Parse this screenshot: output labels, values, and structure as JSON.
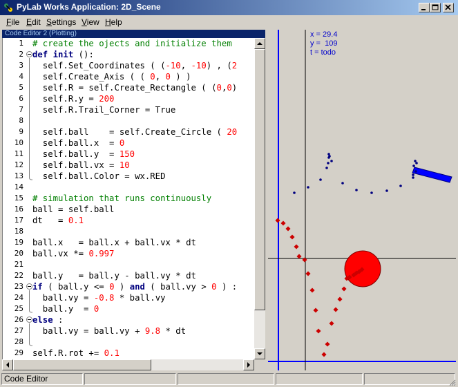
{
  "window": {
    "title": "PyLab Works Application: 2D_Scene",
    "title_color": "#0a246a"
  },
  "menu": [
    "File",
    "Edit",
    "Settings",
    "View",
    "Help"
  ],
  "editor": {
    "caption": "Code Editor 2 (Plotting)",
    "lines": [
      {
        "n": "1",
        "fold": "",
        "html": "<span class=\"cm\"># create the ojects and initialize them</span>"
      },
      {
        "n": "2",
        "fold": "minus",
        "html": "<span class=\"kw\">def</span> <span class=\"kw\">init</span> ():"
      },
      {
        "n": "3",
        "fold": "",
        "html": "  self.Set_Coordinates ( (<span class=\"num\">-10</span>, <span class=\"num\">-10</span>) , (<span class=\"num\">2</span>"
      },
      {
        "n": "4",
        "fold": "",
        "html": "  self.Create_Axis ( ( <span class=\"num\">0</span>, <span class=\"num\">0</span> ) )"
      },
      {
        "n": "5",
        "fold": "",
        "html": "  self.R = self.Create_Rectangle ( (<span class=\"num\">0</span>,<span class=\"num\">0</span>)"
      },
      {
        "n": "6",
        "fold": "",
        "html": "  self.R.y = <span class=\"num\">200</span>"
      },
      {
        "n": "7",
        "fold": "",
        "html": "  self.R.Trail_Corner = True"
      },
      {
        "n": "8",
        "fold": "",
        "html": ""
      },
      {
        "n": "9",
        "fold": "",
        "html": "  self.ball    = self.Create_Circle ( <span class=\"num\">20</span>"
      },
      {
        "n": "10",
        "fold": "",
        "html": "  self.ball.x  = <span class=\"num\">0</span>"
      },
      {
        "n": "11",
        "fold": "",
        "html": "  self.ball.y  = <span class=\"num\">150</span>"
      },
      {
        "n": "12",
        "fold": "",
        "html": "  self.ball.vx = <span class=\"num\">10</span>"
      },
      {
        "n": "13",
        "fold": "end",
        "html": "  self.ball.Color = wx.RED"
      },
      {
        "n": "14",
        "fold": "",
        "html": ""
      },
      {
        "n": "15",
        "fold": "",
        "html": "<span class=\"cm\"># simulation that runs continuously</span>"
      },
      {
        "n": "16",
        "fold": "",
        "html": "ball = self.ball"
      },
      {
        "n": "17",
        "fold": "",
        "html": "dt   = <span class=\"num\">0.1</span>"
      },
      {
        "n": "18",
        "fold": "",
        "html": ""
      },
      {
        "n": "19",
        "fold": "",
        "html": "ball.x   = ball.x + ball.vx * dt"
      },
      {
        "n": "20",
        "fold": "",
        "html": "ball.vx *= <span class=\"num\">0.997</span>"
      },
      {
        "n": "21",
        "fold": "",
        "html": ""
      },
      {
        "n": "22",
        "fold": "",
        "html": "ball.y   = ball.y - ball.vy * dt"
      },
      {
        "n": "23",
        "fold": "minus",
        "html": "<span class=\"kw\">if</span> ( ball.y &lt;= <span class=\"num\">0</span> ) <span class=\"kw\">and</span> ( ball.vy &gt; <span class=\"num\">0</span> ) :"
      },
      {
        "n": "24",
        "fold": "",
        "html": "  ball.vy = <span class=\"num\">-0.8</span> * ball.vy"
      },
      {
        "n": "25",
        "fold": "end",
        "html": "  ball.y  = <span class=\"num\">0</span>"
      },
      {
        "n": "26",
        "fold": "minus",
        "html": "<span class=\"kw\">else</span> :"
      },
      {
        "n": "27",
        "fold": "",
        "html": "  ball.vy = ball.vy + <span class=\"num\">9.8</span> * dt"
      },
      {
        "n": "28",
        "fold": "end",
        "html": ""
      },
      {
        "n": "29",
        "fold": "",
        "html": "self.R.rot += <span class=\"num\">0.1</span>"
      }
    ]
  },
  "scene": {
    "readout": [
      "x = 29.4",
      "y =  109",
      "t = todo"
    ],
    "axis_color": "#0000ff",
    "ball_color": "#ff0000",
    "rect_color": "#0000ff",
    "trail_color": "#cc0000",
    "dot_color": "#000080"
  },
  "status": {
    "left": "Code Editor"
  }
}
